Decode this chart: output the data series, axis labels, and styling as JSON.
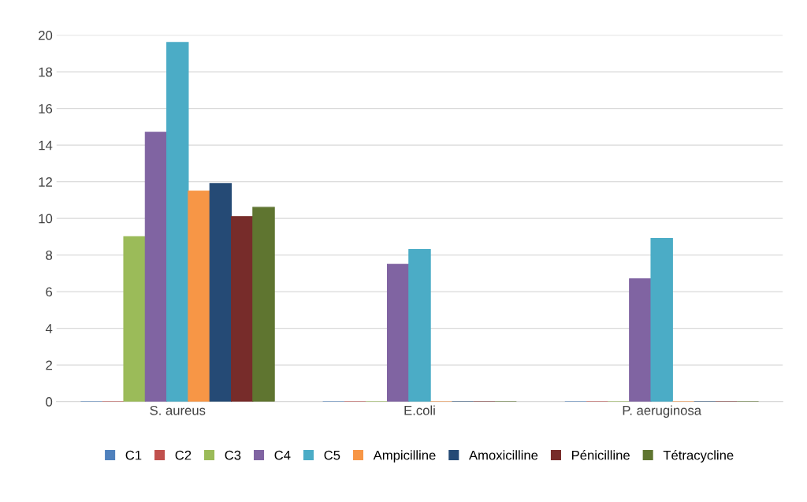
{
  "chart_data": {
    "type": "bar",
    "categories": [
      "S. aureus",
      "E.coli",
      "P. aeruginosa"
    ],
    "series": [
      {
        "name": "C1",
        "color": "#4f81bd",
        "values": [
          0,
          0,
          0
        ]
      },
      {
        "name": "C2",
        "color": "#c0504d",
        "values": [
          0,
          0,
          0
        ]
      },
      {
        "name": "C3",
        "color": "#9bbb59",
        "values": [
          9,
          0,
          0
        ]
      },
      {
        "name": "C4",
        "color": "#8064a2",
        "values": [
          14.7,
          7.5,
          6.7
        ]
      },
      {
        "name": "C5",
        "color": "#4bacc6",
        "values": [
          19.6,
          8.3,
          8.9
        ]
      },
      {
        "name": "Ampicilline",
        "color": "#f79646",
        "values": [
          11.5,
          0,
          0
        ]
      },
      {
        "name": "Amoxicilline",
        "color": "#254a75",
        "values": [
          11.9,
          0,
          0
        ]
      },
      {
        "name": "Pénicilline",
        "color": "#772c2a",
        "values": [
          10.1,
          0,
          0
        ]
      },
      {
        "name": "Tétracycline",
        "color": "#5f7530",
        "values": [
          10.6,
          0,
          0
        ]
      }
    ],
    "ylim": [
      0,
      20
    ],
    "yticks": [
      0,
      2,
      4,
      6,
      8,
      10,
      12,
      14,
      16,
      18,
      20
    ],
    "grid": "y",
    "legend": "bottom"
  }
}
